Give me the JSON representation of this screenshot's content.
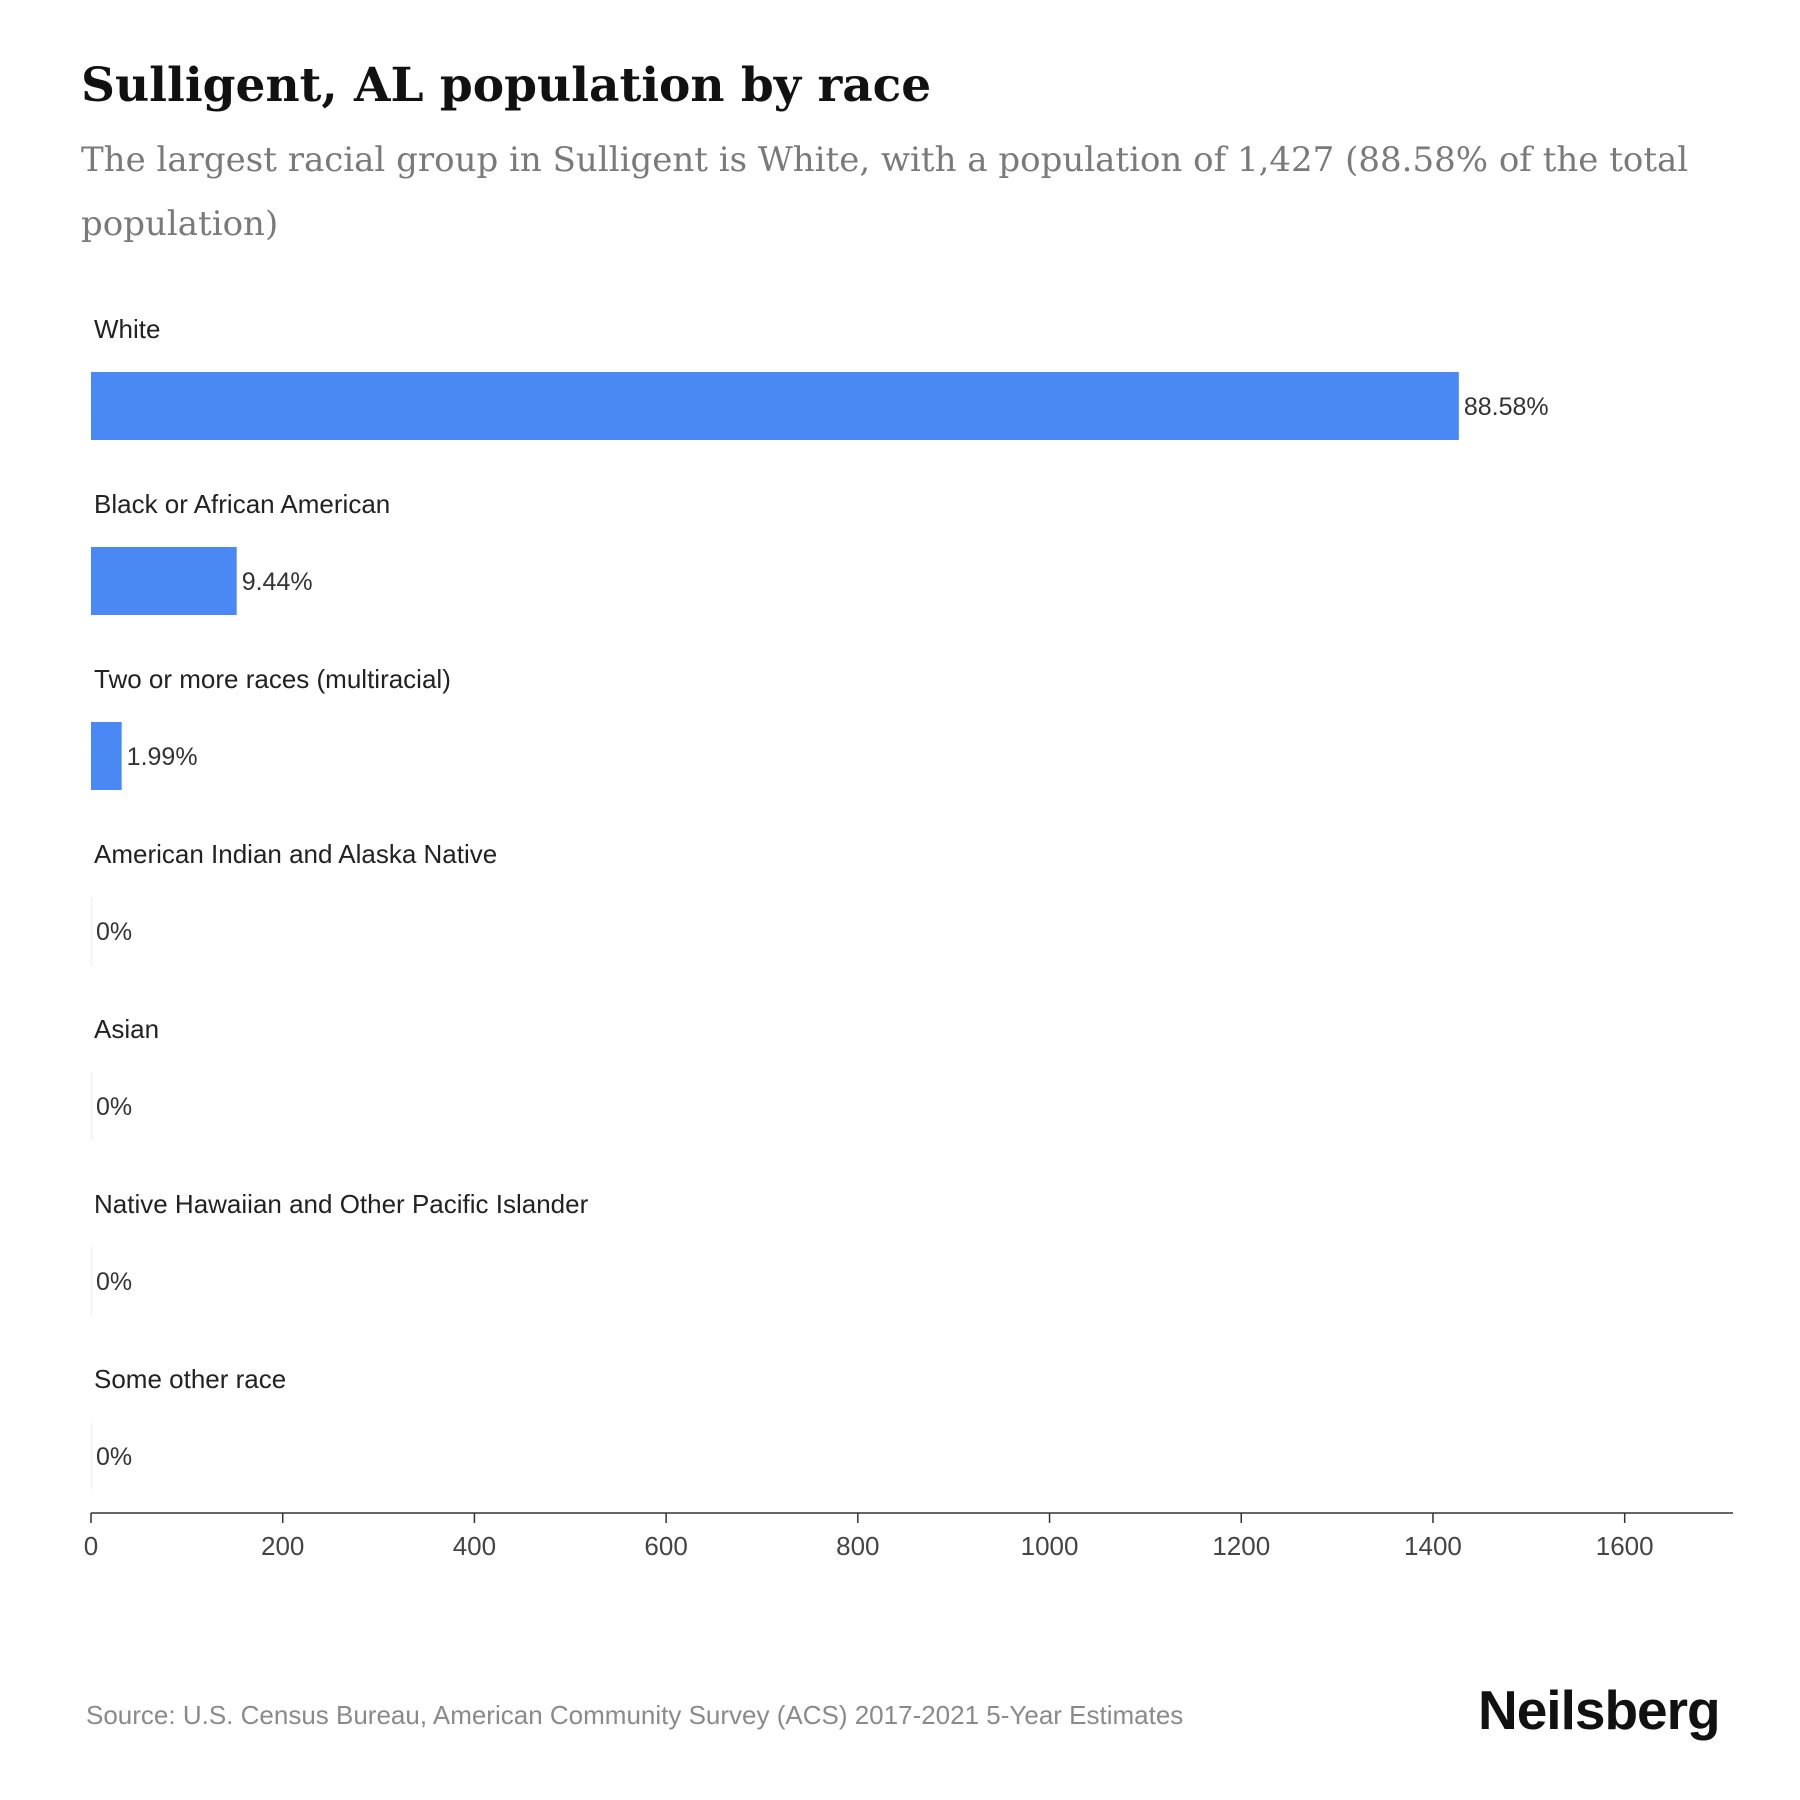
{
  "chart_data": {
    "type": "bar",
    "orientation": "horizontal",
    "title": "Sulligent, AL population by race",
    "subtitle": "The largest racial group in Sulligent is White, with a population of 1,427 (88.58% of the total population)",
    "categories": [
      "White",
      "Black or African American",
      "Two or more races (multiracial)",
      "American Indian and Alaska Native",
      "Asian",
      "Native Hawaiian and Other Pacific Islander",
      "Some other race"
    ],
    "values": [
      1427,
      152,
      32,
      0,
      0,
      0,
      0
    ],
    "value_labels": [
      "88.58%",
      "9.44%",
      "1.99%",
      "0%",
      "0%",
      "0%",
      "0%"
    ],
    "xticks": [
      "0",
      "200",
      "400",
      "600",
      "800",
      "1000",
      "1200",
      "1400",
      "1600"
    ],
    "xlim": [
      0,
      1713
    ],
    "bar_color": "#4a89f3",
    "grid": false
  },
  "footer": {
    "source": "Source: U.S. Census Bureau, American Community Survey (ACS) 2017-2021 5-Year Estimates",
    "brand": "Neilsberg"
  }
}
